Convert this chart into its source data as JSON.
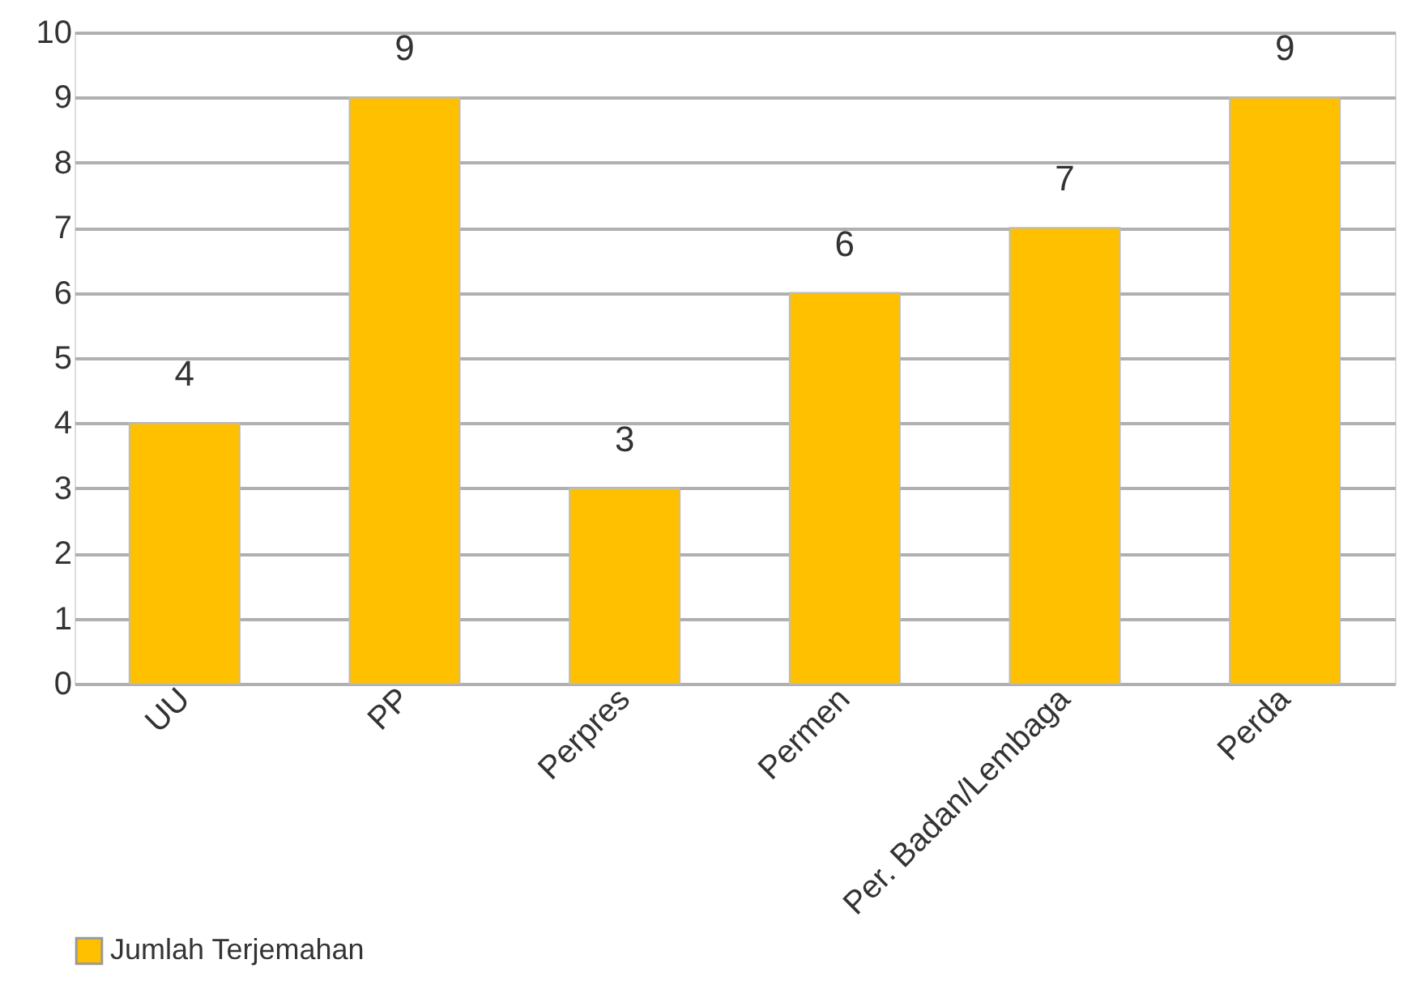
{
  "chart_data": {
    "type": "bar",
    "categories": [
      "UU",
      "PP",
      "Perpres",
      "Permen",
      "Per. Badan/Lembaga",
      "Perda"
    ],
    "series": [
      {
        "name": "Jumlah Terjemahan",
        "color": "#ffc000",
        "values": [
          4,
          9,
          3,
          6,
          7,
          9
        ]
      }
    ],
    "ylim": [
      0,
      10
    ],
    "yticks": [
      0,
      1,
      2,
      3,
      4,
      5,
      6,
      7,
      8,
      9,
      10
    ],
    "grid": "y",
    "legend": "bottom",
    "data_labels": true
  }
}
